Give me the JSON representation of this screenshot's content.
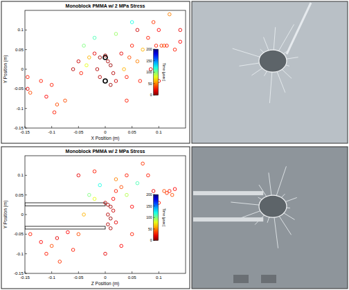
{
  "chart_data": [
    {
      "type": "scatter",
      "title": "Monoblock PMMA w/ 2 MPa Stress",
      "x_label": "X Position (m)",
      "y_label": "Y Position (m)",
      "xlim": [
        -0.15,
        0.15
      ],
      "ylim": [
        -0.15,
        0.15
      ],
      "xticks": [
        -0.15,
        -0.1,
        -0.05,
        0,
        0.05,
        0.1
      ],
      "yticks": [
        -0.15,
        -0.1,
        -0.05,
        0,
        0.05,
        0.1
      ],
      "marker": "circle",
      "x": [
        -0.145,
        -0.145,
        -0.14,
        -0.12,
        -0.11,
        -0.1,
        -0.09,
        -0.095,
        -0.075,
        -0.06,
        -0.05,
        -0.045,
        -0.035,
        -0.04,
        -0.03,
        -0.02,
        -0.015,
        -0.01,
        -0.01,
        0.0,
        0.005,
        0.01,
        0.015,
        0.02,
        0.01,
        0.03,
        0.035,
        0.04,
        0.045,
        0.04,
        0.05,
        0.06,
        0.06,
        0.065,
        0.07,
        0.08,
        0.085,
        0.09,
        0.095,
        0.1,
        0.105,
        0.11,
        0.115,
        0.12,
        0.13,
        0.14,
        0.14,
        -0.02,
        0.05,
        0.02,
        0.1
      ],
      "values": [
        -0.02,
        -0.05,
        -0.06,
        -0.03,
        -0.07,
        -0.04,
        -0.09,
        -0.11,
        -0.08,
        0.0,
        0.02,
        -0.01,
        0.01,
        0.06,
        0.03,
        0.04,
        0.0,
        0.03,
        -0.02,
        0.035,
        0.02,
        0.01,
        -0.01,
        -0.03,
        -0.04,
        0.04,
        0.0,
        -0.02,
        0.03,
        -0.08,
        0.06,
        0.1,
        0.02,
        -0.03,
        0.05,
        0.08,
        0.0,
        0.12,
        0.06,
        0.1,
        0.06,
        0.06,
        0.06,
        0.14,
        0.05,
        0.07,
        0.1,
        0.08,
        0.12,
        0.09,
        -0.03
      ],
      "times": [
        30,
        20,
        40,
        30,
        25,
        30,
        40,
        30,
        40,
        10,
        15,
        30,
        80,
        100,
        60,
        20,
        10,
        5,
        10,
        5,
        8,
        5,
        10,
        15,
        5,
        20,
        60,
        30,
        40,
        30,
        30,
        15,
        50,
        30,
        60,
        30,
        20,
        35,
        30,
        25,
        35,
        40,
        30,
        50,
        30,
        25,
        20,
        110,
        120,
        95,
        20
      ],
      "colorbar": {
        "label": "Time (µsec)",
        "lim": [
          0,
          200
        ],
        "ticks": [
          0,
          50,
          100,
          150,
          200
        ]
      },
      "boreholes": [
        {
          "x": 0.0,
          "y": 0.03
        },
        {
          "x": 0.0,
          "y": -0.03
        }
      ]
    },
    {
      "type": "scatter",
      "title": "Monoblock PMMA w/ 2 MPa Stress",
      "x_label": "Z Position (m)",
      "y_label": "Y Position (m)",
      "xlim": [
        -0.15,
        0.15
      ],
      "ylim": [
        -0.15,
        0.15
      ],
      "xticks": [
        -0.15,
        -0.1,
        -0.05,
        0,
        0.05,
        0.1
      ],
      "yticks": [
        -0.15,
        -0.1,
        -0.05,
        0,
        0.05,
        0.1
      ],
      "marker": "circle",
      "x": [
        -0.14,
        -0.12,
        -0.11,
        -0.1,
        -0.09,
        -0.085,
        -0.07,
        -0.06,
        -0.05,
        -0.04,
        -0.03,
        -0.02,
        -0.05,
        -0.02,
        0.0,
        0.005,
        0.01,
        0.005,
        0.01,
        0.005,
        0.01,
        0.015,
        0.02,
        0.015,
        0.02,
        0.03,
        0.02,
        0.04,
        0.05,
        0.05,
        0.06,
        0.07,
        0.08,
        0.09,
        0.1,
        0.11,
        0.115,
        0.12,
        0.125,
        0.13,
        0.03,
        0.0,
        -0.01,
        0.04
      ],
      "values": [
        -0.05,
        -0.07,
        -0.1,
        -0.08,
        -0.06,
        -0.12,
        -0.045,
        -0.09,
        -0.05,
        0.0,
        0.05,
        0.04,
        0.1,
        0.11,
        0.03,
        0.025,
        0.02,
        0.0,
        -0.01,
        -0.025,
        -0.035,
        0.01,
        -0.02,
        0.04,
        0.06,
        0.07,
        0.09,
        0.1,
        0.02,
        -0.05,
        0.08,
        0.13,
        0.1,
        0.06,
        0.03,
        0.06,
        0.055,
        0.06,
        0.05,
        0.065,
        -0.08,
        -0.1,
        0.075,
        0.05
      ],
      "times": [
        30,
        25,
        30,
        40,
        20,
        35,
        25,
        30,
        40,
        60,
        100,
        80,
        20,
        30,
        10,
        5,
        8,
        10,
        5,
        10,
        8,
        15,
        20,
        25,
        30,
        40,
        50,
        30,
        25,
        30,
        110,
        35,
        30,
        20,
        30,
        40,
        35,
        30,
        40,
        25,
        25,
        20,
        120,
        90
      ],
      "colorbar": {
        "label": "Time (µsec)",
        "lim": [
          0,
          200
        ],
        "ticks": [
          0,
          50,
          100,
          150,
          200
        ]
      },
      "boreholes": [
        {
          "x": [
            -0.15,
            0.0
          ],
          "y": [
            0.022,
            0.03
          ]
        },
        {
          "x": [
            -0.15,
            0.0
          ],
          "y": [
            -0.037,
            -0.03
          ]
        }
      ]
    }
  ]
}
